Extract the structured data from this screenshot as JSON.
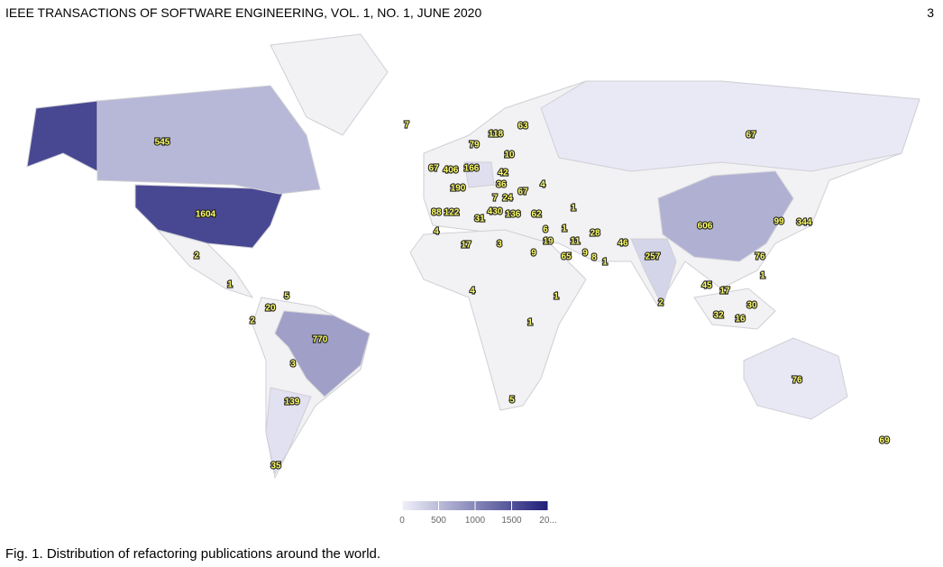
{
  "header": {
    "title": "IEEE TRANSACTIONS OF SOFTWARE ENGINEERING, VOL. 1, NO. 1, JUNE 2020",
    "page": "3"
  },
  "map": {
    "values": [
      1604,
      545,
      770,
      606,
      257,
      406,
      166,
      190,
      118,
      79,
      63,
      67,
      67,
      10,
      42,
      36,
      67,
      4,
      7,
      24,
      430,
      136,
      62,
      88,
      122,
      31,
      1,
      4,
      17,
      3,
      6,
      1,
      19,
      11,
      28,
      46,
      9,
      65,
      9,
      8,
      1,
      99,
      344,
      76,
      1,
      45,
      17,
      30,
      32,
      16,
      2,
      4,
      1,
      1,
      5,
      76,
      69,
      7,
      2,
      1,
      5,
      20,
      2,
      3,
      139,
      35
    ],
    "colors": [
      "#f0f0fa",
      "#1e1e78"
    ],
    "colorlim": [
      0,
      2000
    ],
    "colorticks": [
      0,
      500,
      1000,
      1500,
      {
        "value": 2000,
        "label": "20..."
      }
    ]
  },
  "caption": "Fig. 1. Distribution of refactoring publications around the world."
}
